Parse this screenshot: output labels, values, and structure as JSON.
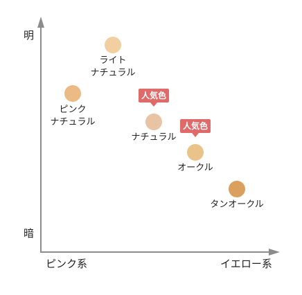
{
  "axes": {
    "y_top": "明",
    "y_bottom": "暗",
    "x_left": "ピンク系",
    "x_right": "イエロー系",
    "line_color": "#8c8c8c"
  },
  "shades": [
    {
      "id": "light-natural",
      "lines": [
        "ライト",
        "ナチュラル"
      ],
      "color": "#f2cfa1",
      "badge": ""
    },
    {
      "id": "pink-natural",
      "lines": [
        "ピンク",
        "ナチュラル"
      ],
      "color": "#ecbb85",
      "badge": ""
    },
    {
      "id": "natural",
      "lines": [
        "ナチュラル"
      ],
      "color": "#e8c4a4",
      "badge": "人気色"
    },
    {
      "id": "ochre",
      "lines": [
        "オークル"
      ],
      "color": "#e9c38a",
      "badge": "人気色"
    },
    {
      "id": "tan-ochre",
      "lines": [
        "タンオークル"
      ],
      "color": "#d9a05e",
      "badge": ""
    }
  ],
  "badge_color": "#e06a6a"
}
